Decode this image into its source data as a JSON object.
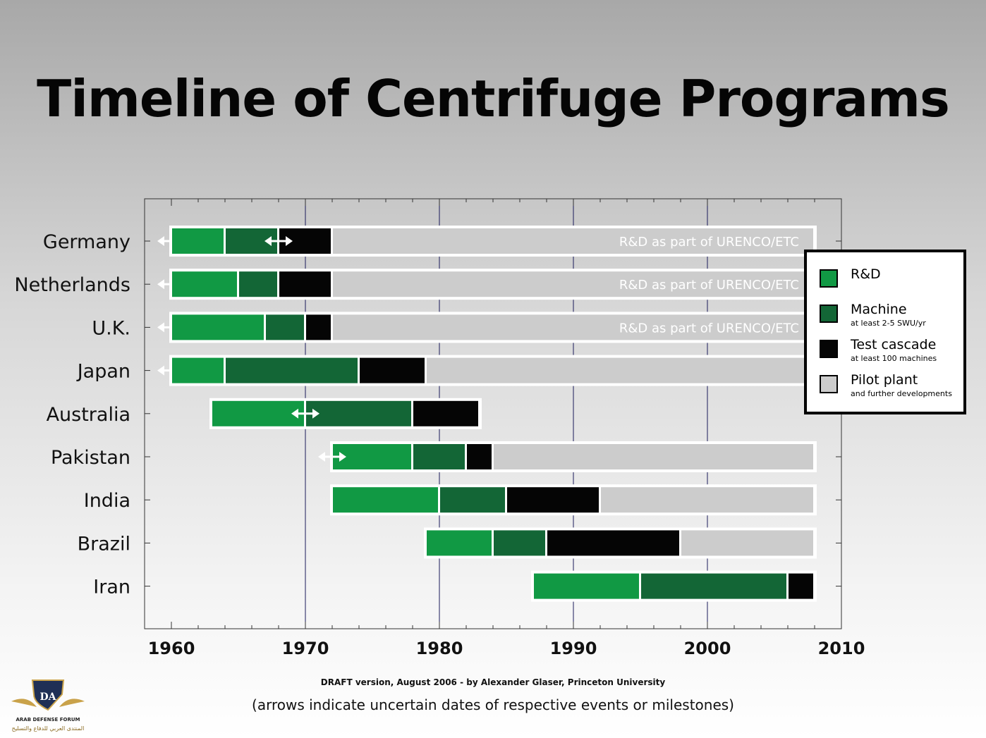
{
  "title": "Timeline of Centrifuge Programs",
  "credit": "DRAFT version, August 2006 - by Alexander Glaser, Princeton University",
  "note": "(arrows indicate uncertain dates of respective events or milestones)",
  "logo": {
    "name": "ARAB DEFENSE FORUM",
    "sub": "المنتدى العربي للدفاع والتسليح",
    "mark": "DA"
  },
  "colors": {
    "rd": "#119944",
    "machine": "#136636",
    "test": "#050505",
    "pilot": "#cccccc"
  },
  "legend": [
    {
      "key": "rd",
      "label": "R&D",
      "sub": ""
    },
    {
      "key": "machine",
      "label": "Machine",
      "sub": "at least 2-5 SWU/yr"
    },
    {
      "key": "test",
      "label": "Test cascade",
      "sub": "at least 100 machines"
    },
    {
      "key": "pilot",
      "label": "Pilot plant",
      "sub": "and further developments"
    }
  ],
  "chart_data": {
    "type": "bar",
    "orientation": "horizontal-timeline",
    "xlim": [
      1958,
      2010
    ],
    "xticks": [
      1960,
      1970,
      1980,
      1990,
      2000,
      2010
    ],
    "grid": "vertical lines at decades",
    "legend_placement": "right",
    "end_year": 2008,
    "series_names": [
      "R&D",
      "Machine",
      "Test cascade",
      "Pilot plant"
    ],
    "countries": [
      {
        "name": "Germany",
        "left_arrow": true,
        "annotation": "R&D as part of URENCO/ETC",
        "phases": [
          {
            "type": "rd",
            "start": 1960,
            "end": 1964
          },
          {
            "type": "machine",
            "start": 1964,
            "end": 1968
          },
          {
            "type": "test",
            "start": 1968,
            "end": 1972
          },
          {
            "type": "pilot",
            "start": 1972,
            "end": 2008
          }
        ],
        "uncertainty_arrows": [
          1968
        ]
      },
      {
        "name": "Netherlands",
        "left_arrow": true,
        "annotation": "R&D as part of URENCO/ETC",
        "phases": [
          {
            "type": "rd",
            "start": 1960,
            "end": 1965
          },
          {
            "type": "machine",
            "start": 1965,
            "end": 1968
          },
          {
            "type": "test",
            "start": 1968,
            "end": 1972
          },
          {
            "type": "pilot",
            "start": 1972,
            "end": 2008
          }
        ],
        "uncertainty_arrows": []
      },
      {
        "name": "U.K.",
        "left_arrow": true,
        "annotation": "R&D as part of URENCO/ETC",
        "phases": [
          {
            "type": "rd",
            "start": 1960,
            "end": 1967
          },
          {
            "type": "machine",
            "start": 1967,
            "end": 1970
          },
          {
            "type": "test",
            "start": 1970,
            "end": 1972
          },
          {
            "type": "pilot",
            "start": 1972,
            "end": 2008
          }
        ],
        "uncertainty_arrows": []
      },
      {
        "name": "Japan",
        "left_arrow": true,
        "annotation": "",
        "phases": [
          {
            "type": "rd",
            "start": 1960,
            "end": 1964
          },
          {
            "type": "machine",
            "start": 1964,
            "end": 1974
          },
          {
            "type": "test",
            "start": 1974,
            "end": 1979
          },
          {
            "type": "pilot",
            "start": 1979,
            "end": 2008
          }
        ],
        "uncertainty_arrows": []
      },
      {
        "name": "Australia",
        "left_arrow": false,
        "annotation": "",
        "phases": [
          {
            "type": "rd",
            "start": 1963,
            "end": 1970
          },
          {
            "type": "machine",
            "start": 1970,
            "end": 1978
          },
          {
            "type": "test",
            "start": 1978,
            "end": 1983
          }
        ],
        "uncertainty_arrows": [
          1970
        ]
      },
      {
        "name": "Pakistan",
        "left_arrow": false,
        "annotation": "",
        "phases": [
          {
            "type": "rd",
            "start": 1972,
            "end": 1978
          },
          {
            "type": "machine",
            "start": 1978,
            "end": 1982
          },
          {
            "type": "test",
            "start": 1982,
            "end": 1984
          },
          {
            "type": "pilot",
            "start": 1984,
            "end": 2008
          }
        ],
        "uncertainty_arrows": [
          1972
        ]
      },
      {
        "name": "India",
        "left_arrow": false,
        "annotation": "",
        "phases": [
          {
            "type": "rd",
            "start": 1972,
            "end": 1980
          },
          {
            "type": "machine",
            "start": 1980,
            "end": 1985
          },
          {
            "type": "test",
            "start": 1985,
            "end": 1992
          },
          {
            "type": "pilot",
            "start": 1992,
            "end": 2008
          }
        ],
        "uncertainty_arrows": []
      },
      {
        "name": "Brazil",
        "left_arrow": false,
        "annotation": "",
        "phases": [
          {
            "type": "rd",
            "start": 1979,
            "end": 1984
          },
          {
            "type": "machine",
            "start": 1984,
            "end": 1988
          },
          {
            "type": "test",
            "start": 1988,
            "end": 1998
          },
          {
            "type": "pilot",
            "start": 1998,
            "end": 2008
          }
        ],
        "uncertainty_arrows": []
      },
      {
        "name": "Iran",
        "left_arrow": false,
        "annotation": "",
        "phases": [
          {
            "type": "rd",
            "start": 1987,
            "end": 1995
          },
          {
            "type": "machine",
            "start": 1995,
            "end": 2006
          },
          {
            "type": "test",
            "start": 2006,
            "end": 2008
          }
        ],
        "uncertainty_arrows": []
      }
    ]
  }
}
